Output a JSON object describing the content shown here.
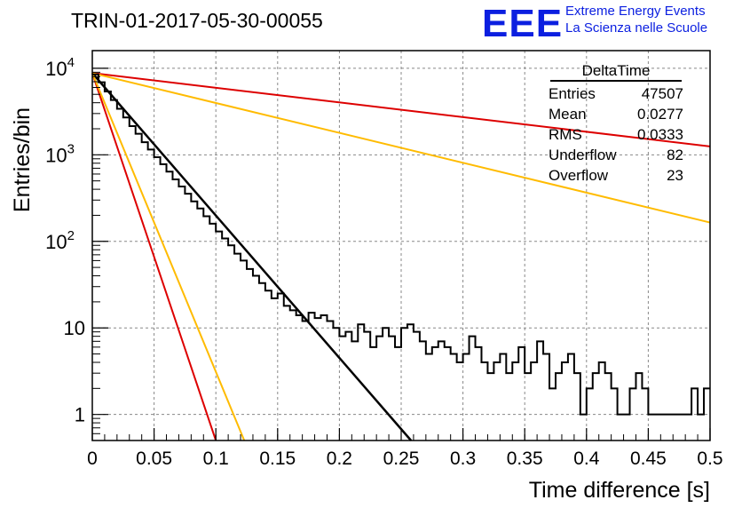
{
  "header": {
    "title": "TRIN-01-2017-05-30-00055",
    "logo_text": "EEE",
    "logo_line1": "Extreme Energy Events",
    "logo_line2": "La Scienza nelle Scuole"
  },
  "stats": {
    "title": "DeltaTime",
    "rows": [
      {
        "label": "Entries",
        "value": "47507"
      },
      {
        "label": "Mean",
        "value": "0.0277"
      },
      {
        "label": "RMS",
        "value": "0.0333"
      },
      {
        "label": "Underflow",
        "value": "82"
      },
      {
        "label": "Overflow",
        "value": "23"
      }
    ]
  },
  "colors": {
    "histogram": "#000000",
    "fit": "#000000",
    "red_band": "#dd0000",
    "orange_band": "#ffbb00",
    "grid": "#888888"
  },
  "chart_data": {
    "type": "line",
    "title": "TRIN-01-2017-05-30-00055",
    "xlabel": "Time difference [s]",
    "ylabel": "Entries/bin",
    "xlim": [
      0,
      0.5
    ],
    "ylim": [
      0.5,
      16000
    ],
    "ylog": true,
    "grid": true,
    "x_ticks": [
      {
        "v": 0,
        "label": "0"
      },
      {
        "v": 0.05,
        "label": "0.05"
      },
      {
        "v": 0.1,
        "label": "0.1"
      },
      {
        "v": 0.15,
        "label": "0.15"
      },
      {
        "v": 0.2,
        "label": "0.2"
      },
      {
        "v": 0.25,
        "label": "0.25"
      },
      {
        "v": 0.3,
        "label": "0.3"
      },
      {
        "v": 0.35,
        "label": "0.35"
      },
      {
        "v": 0.4,
        "label": "0.4"
      },
      {
        "v": 0.45,
        "label": "0.45"
      },
      {
        "v": 0.5,
        "label": "0.5"
      }
    ],
    "y_ticks": [
      {
        "v": 1,
        "label": "1"
      },
      {
        "v": 10,
        "label": "10"
      },
      {
        "v": 100,
        "label": "10^2"
      },
      {
        "v": 1000,
        "label": "10^3"
      },
      {
        "v": 10000,
        "label": "10^4"
      }
    ],
    "bin_width": 0.005,
    "histogram": [
      8500,
      6900,
      5400,
      4300,
      3400,
      2700,
      2150,
      1750,
      1400,
      1150,
      940,
      780,
      640,
      520,
      430,
      355,
      290,
      240,
      195,
      160,
      130,
      108,
      90,
      72,
      60,
      48,
      40,
      33,
      27,
      22,
      25,
      18,
      16,
      14,
      12,
      15,
      13,
      14,
      12,
      10,
      8,
      9,
      7,
      11,
      9,
      6,
      8,
      10,
      8,
      6,
      10,
      11,
      9,
      7,
      5,
      6,
      7,
      6,
      5,
      4,
      5,
      8,
      6,
      4,
      3,
      4,
      5,
      3,
      4,
      6,
      3,
      4,
      7,
      5,
      2,
      3,
      4,
      5,
      3,
      1,
      2,
      3,
      4,
      3,
      2,
      1,
      1,
      2,
      3,
      2,
      1,
      1,
      1,
      1,
      1,
      1,
      1,
      2,
      1,
      2
    ],
    "fits": [
      {
        "color": "#000000",
        "x": [
          0,
          0.258
        ],
        "y": [
          8800,
          0.5
        ]
      },
      {
        "color": "#dd0000",
        "x": [
          0,
          0.5
        ],
        "y": [
          8800,
          1250
        ]
      },
      {
        "color": "#ffbb00",
        "x": [
          0,
          0.5
        ],
        "y": [
          8800,
          165
        ]
      },
      {
        "color": "#dd0000",
        "x": [
          0,
          0.1
        ],
        "y": [
          8800,
          0.5
        ]
      },
      {
        "color": "#ffbb00",
        "x": [
          0,
          0.123
        ],
        "y": [
          8800,
          0.5
        ]
      }
    ]
  }
}
